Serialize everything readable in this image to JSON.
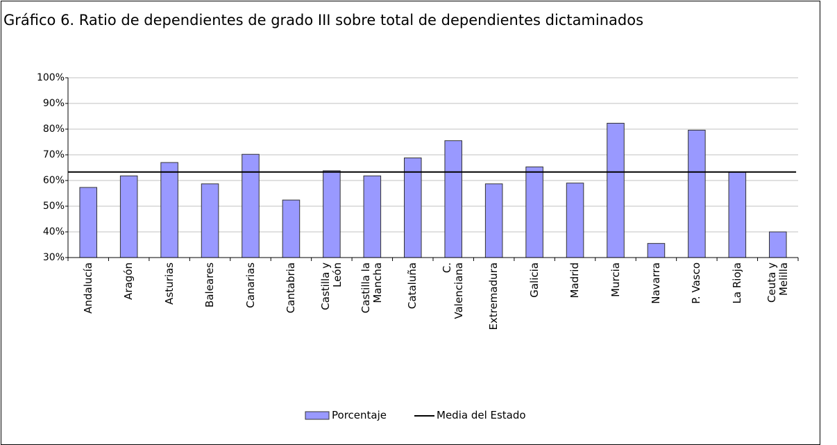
{
  "chart_data": {
    "type": "bar",
    "title": "Gráfico 6. Ratio de dependientes  de grado III sobre total de dependientes dictaminados",
    "categories": [
      "Andalucía",
      "Aragón",
      "Asturias",
      "Baleares",
      "Canarias",
      "Cantabria",
      "Castilla y\nLeón",
      "Castilla la\nMancha",
      "Cataluña",
      "C.\nValenciana",
      "Extremadura",
      "Galicia",
      "Madrid",
      "Murcia",
      "Navarra",
      "P. Vasco",
      "La Rioja",
      "Ceuta y\nMelilla"
    ],
    "series": [
      {
        "name": "Porcentaje",
        "type": "bar",
        "color": "#9999ff",
        "values": [
          57.3,
          61.8,
          67,
          58.7,
          70.2,
          52.4,
          63.8,
          61.8,
          68.8,
          75.5,
          58.7,
          65.3,
          59,
          82.3,
          35.5,
          79.6,
          63.2,
          40
        ]
      },
      {
        "name": "Media del Estado",
        "type": "line",
        "color": "#000000",
        "values": [
          63.3,
          63.3,
          63.3,
          63.3,
          63.3,
          63.3,
          63.3,
          63.3,
          63.3,
          63.3,
          63.3,
          63.3,
          63.3,
          63.3,
          63.3,
          63.3,
          63.3,
          63.3
        ]
      }
    ],
    "ylim": [
      30,
      100
    ],
    "yticks": [
      {
        "value": 30,
        "label": "30%"
      },
      {
        "value": 40,
        "label": "40%"
      },
      {
        "value": 50,
        "label": "50%"
      },
      {
        "value": 60,
        "label": "60%"
      },
      {
        "value": 70,
        "label": "70%"
      },
      {
        "value": 80,
        "label": "80%"
      },
      {
        "value": 90,
        "label": "90%"
      },
      {
        "value": 100,
        "label": "100%"
      }
    ],
    "grid": true,
    "legend": "bottom"
  }
}
